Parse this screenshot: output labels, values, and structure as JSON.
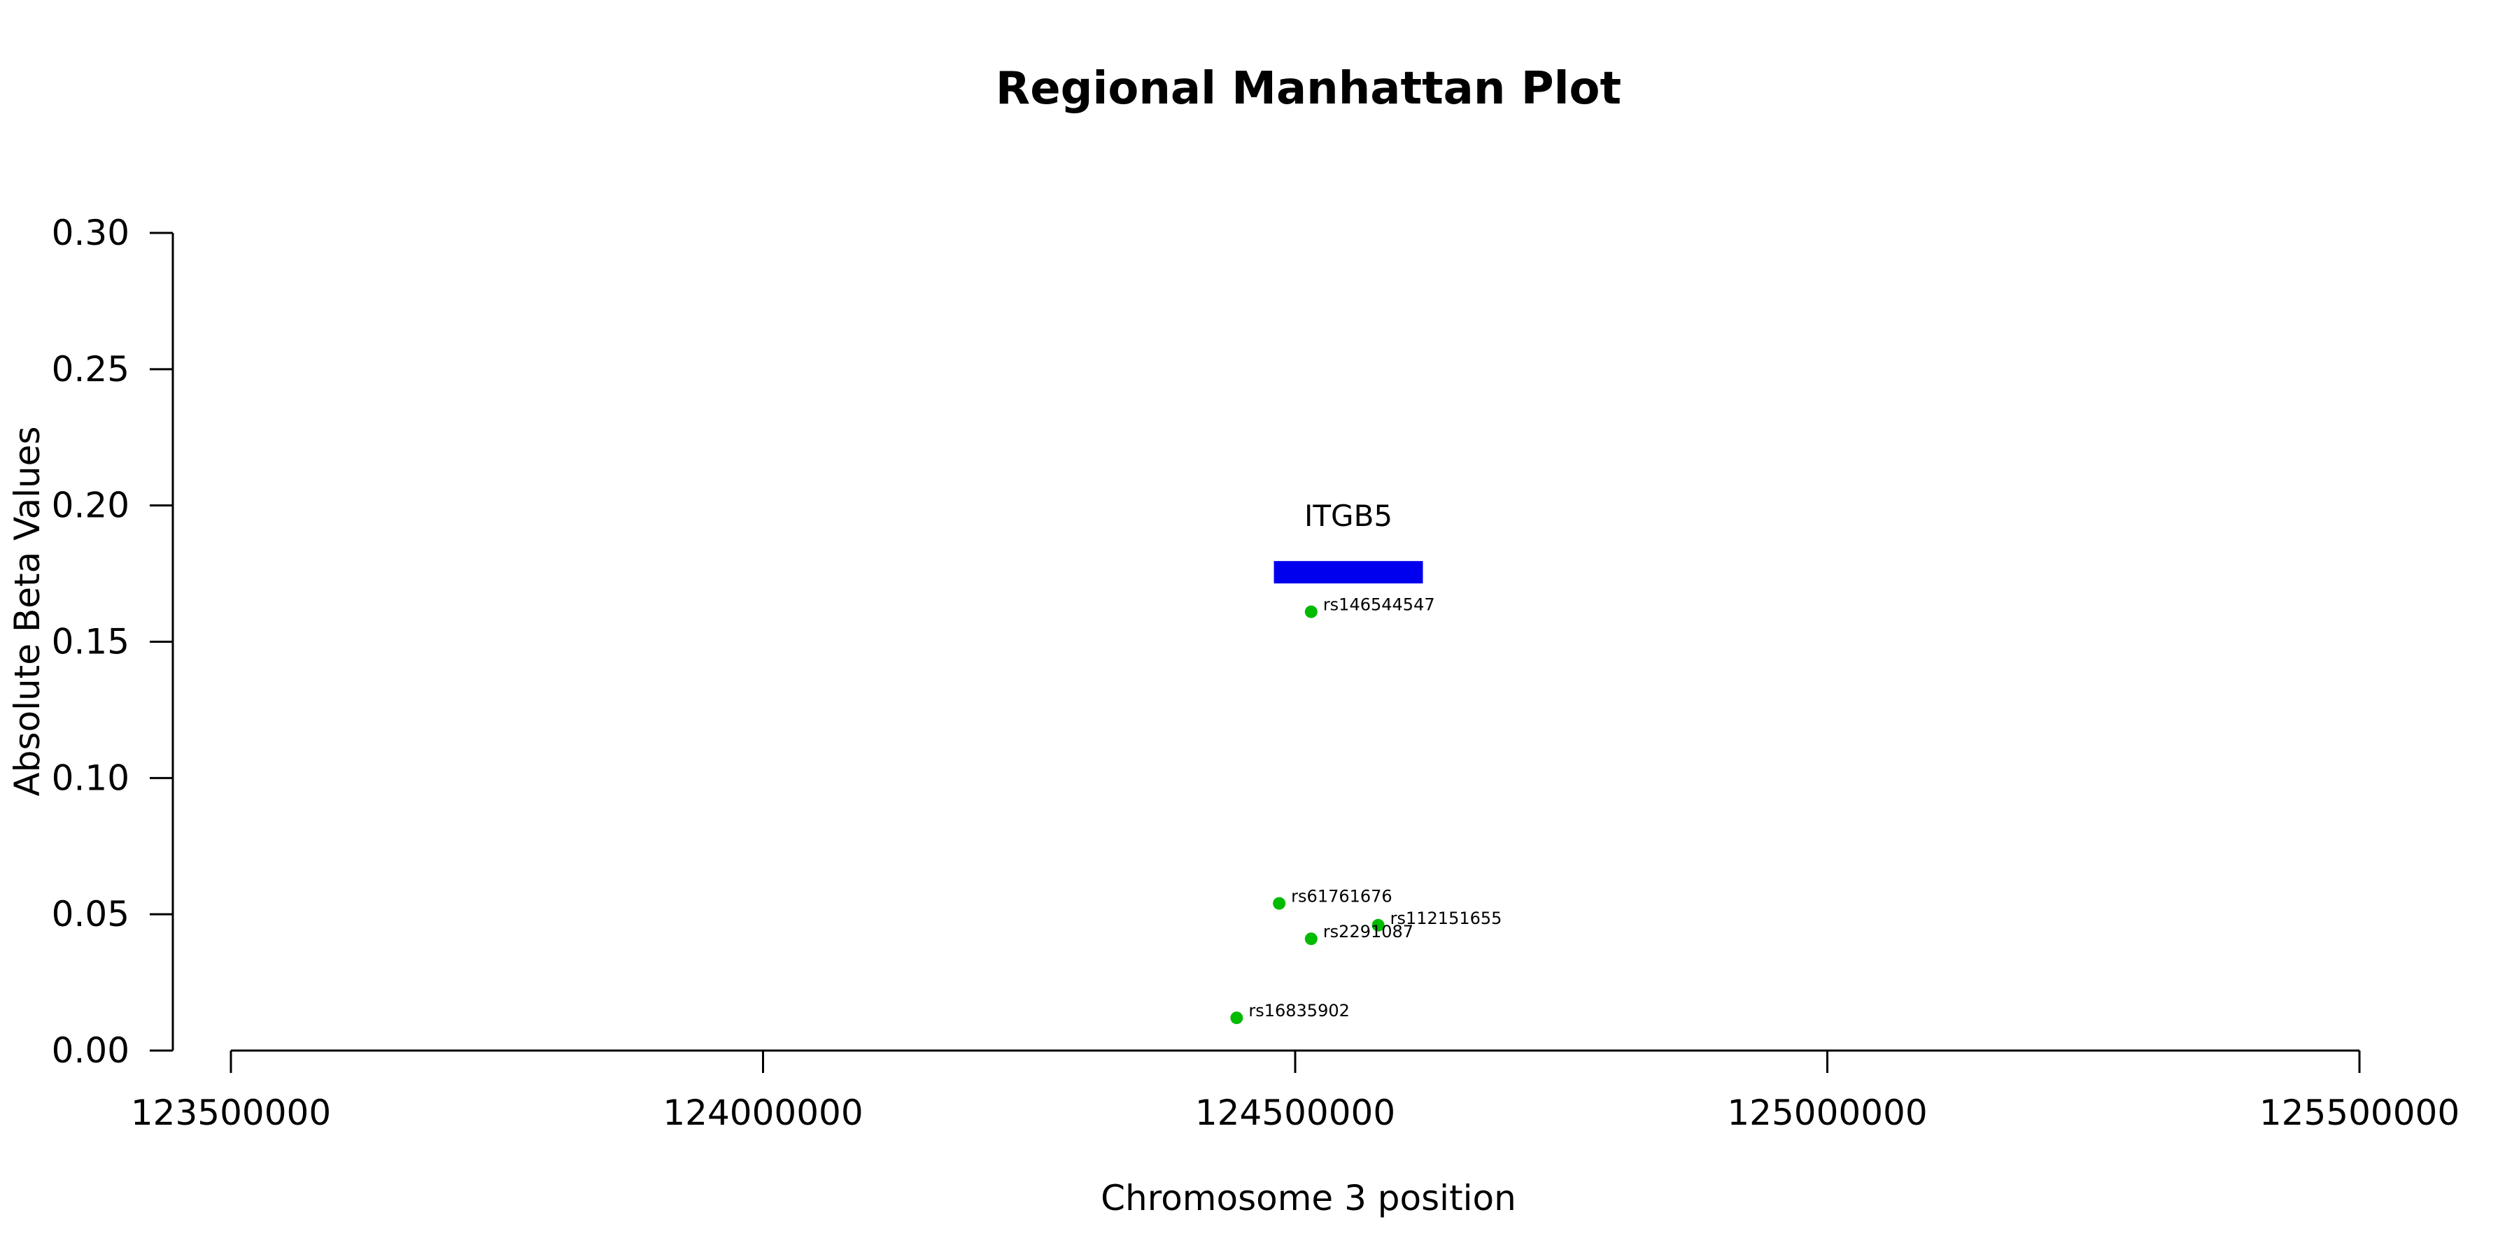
{
  "chart_data": {
    "type": "scatter",
    "title": "Regional Manhattan Plot",
    "xlabel": "Chromosome 3 position",
    "ylabel": "Absolute Beta Values",
    "xlim": [
      123500000,
      125500000
    ],
    "ylim": [
      0.0,
      0.3
    ],
    "x_ticks": [
      123500000,
      124000000,
      124500000,
      125000000,
      125500000
    ],
    "y_ticks": [
      0.0,
      0.05,
      0.1,
      0.15,
      0.2,
      0.25,
      0.3
    ],
    "y_tick_labels": [
      "0.00",
      "0.05",
      "0.10",
      "0.15",
      "0.20",
      "0.25",
      "0.30"
    ],
    "grid": false,
    "point_color": "#00bb00",
    "points": [
      {
        "label": "rs146544547",
        "x": 124515000,
        "y": 0.161
      },
      {
        "label": "rs61761676",
        "x": 124485000,
        "y": 0.054
      },
      {
        "label": "rs112151655",
        "x": 124578000,
        "y": 0.046
      },
      {
        "label": "rs2291087",
        "x": 124515000,
        "y": 0.041
      },
      {
        "label": "rs16835902",
        "x": 124445000,
        "y": 0.012
      }
    ],
    "genes": [
      {
        "name": "ITGB5",
        "start": 124480000,
        "end": 124620000,
        "y": 0.1755,
        "color": "#0000ee"
      }
    ]
  }
}
